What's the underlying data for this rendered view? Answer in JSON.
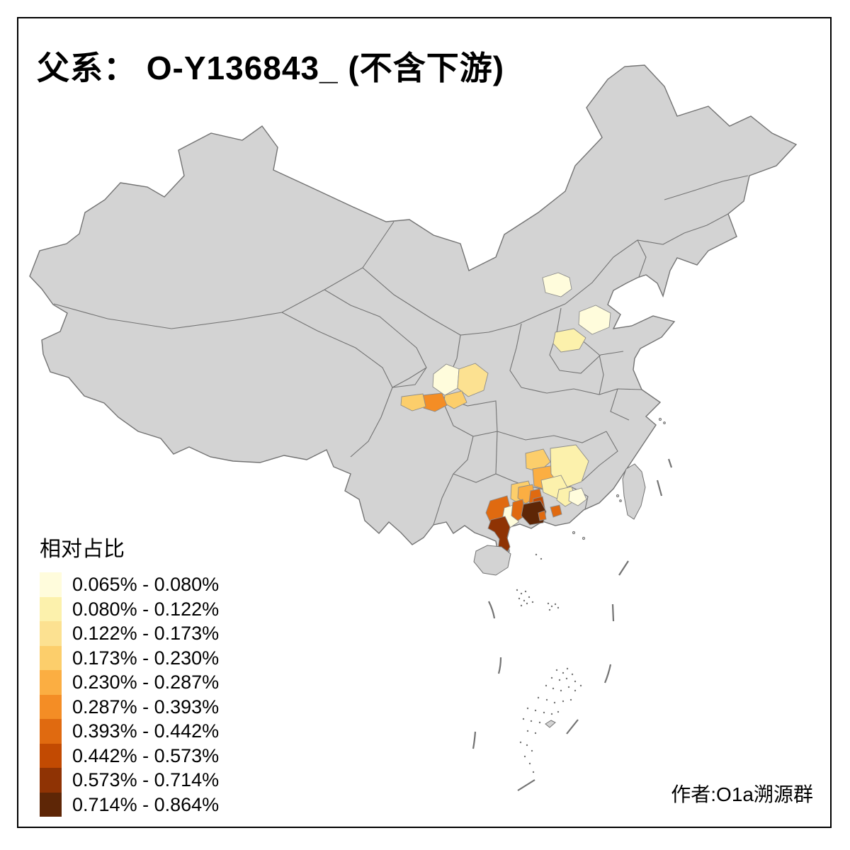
{
  "title": "父系： O-Y136843_ (不含下游)",
  "attribution": "作者:O1a溯源群",
  "legend": {
    "title": "相对占比",
    "classes": [
      {
        "label": "0.065% - 0.080%",
        "color": "#FFFCDC"
      },
      {
        "label": "0.080% - 0.122%",
        "color": "#FCF1AC"
      },
      {
        "label": "0.122% - 0.173%",
        "color": "#FCE191"
      },
      {
        "label": "0.173% - 0.230%",
        "color": "#FCCE6B"
      },
      {
        "label": "0.230% - 0.287%",
        "color": "#FBAE42"
      },
      {
        "label": "0.287% - 0.393%",
        "color": "#F48D25"
      },
      {
        "label": "0.393% - 0.442%",
        "color": "#E06A10"
      },
      {
        "label": "0.442% - 0.573%",
        "color": "#C24A02"
      },
      {
        "label": "0.573% - 0.714%",
        "color": "#8F3304"
      },
      {
        "label": "0.714% - 0.864%",
        "color": "#5E2606"
      }
    ]
  },
  "map": {
    "land_color": "#D3D3D3",
    "province_border_color": "#737373",
    "region_border_color": "#8C8C8C",
    "background_color": "#FFFFFF",
    "frame_color": "#000000",
    "highlighted_region_classes": [
      1,
      1,
      2,
      1,
      3,
      4,
      6,
      4,
      4,
      5,
      2,
      2,
      2,
      1,
      4,
      5,
      7,
      8,
      7,
      1,
      7,
      10,
      7,
      7,
      9
    ]
  }
}
